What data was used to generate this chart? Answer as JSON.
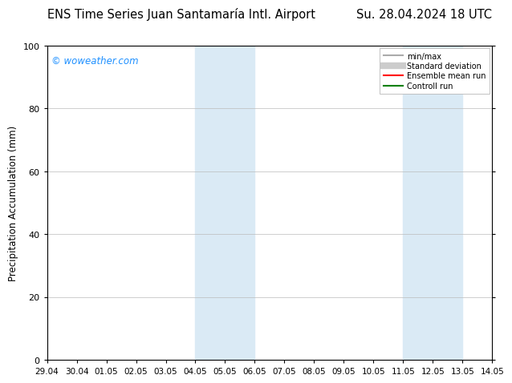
{
  "title_left": "ENS Time Series Juan Santamaría Intl. Airport",
  "title_right": "Su. 28.04.2024 18 UTC",
  "ylabel": "Precipitation Accumulation (mm)",
  "ylim": [
    0,
    100
  ],
  "yticks": [
    0,
    20,
    40,
    60,
    80,
    100
  ],
  "xtick_labels": [
    "29.04",
    "30.04",
    "01.05",
    "02.05",
    "03.05",
    "04.05",
    "05.05",
    "06.05",
    "07.05",
    "08.05",
    "09.05",
    "10.05",
    "11.05",
    "12.05",
    "13.05",
    "14.05"
  ],
  "shaded_regions": [
    {
      "xstart": 5,
      "xend": 7,
      "color": "#daeaf5"
    },
    {
      "xstart": 12,
      "xend": 14,
      "color": "#daeaf5"
    }
  ],
  "watermark_text": "© woweather.com",
  "watermark_color": "#1e90ff",
  "legend_items": [
    {
      "label": "min/max",
      "color": "#aaaaaa",
      "lw": 1.5
    },
    {
      "label": "Standard deviation",
      "color": "#cccccc",
      "lw": 6
    },
    {
      "label": "Ensemble mean run",
      "color": "#ff0000",
      "lw": 1.5
    },
    {
      "label": "Controll run",
      "color": "#008000",
      "lw": 1.5
    }
  ],
  "bg_color": "#ffffff",
  "plot_bg_color": "#ffffff",
  "grid_color": "#bbbbbb",
  "tick_label_fontsize": 7.5,
  "title_fontsize": 10.5,
  "ylabel_fontsize": 8.5
}
